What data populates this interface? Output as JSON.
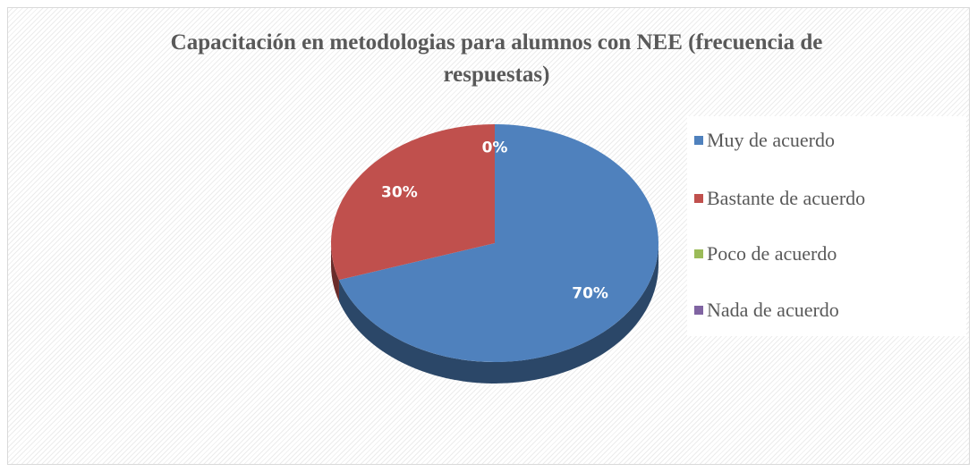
{
  "chart_data": {
    "type": "pie",
    "title": "Capacitación en metodologias para alumnos con  NEE (frecuencia de respuestas)",
    "categories": [
      "Muy de acuerdo",
      "Bastante de acuerdo",
      "Poco de acuerdo",
      "Nada de acuerdo"
    ],
    "values": [
      70,
      30,
      0,
      0
    ],
    "value_labels": [
      "70%",
      "30%",
      "0%",
      null
    ],
    "colors": [
      "#4f81bd",
      "#c0504d",
      "#9bbb59",
      "#8064a2"
    ],
    "legend": "right"
  }
}
